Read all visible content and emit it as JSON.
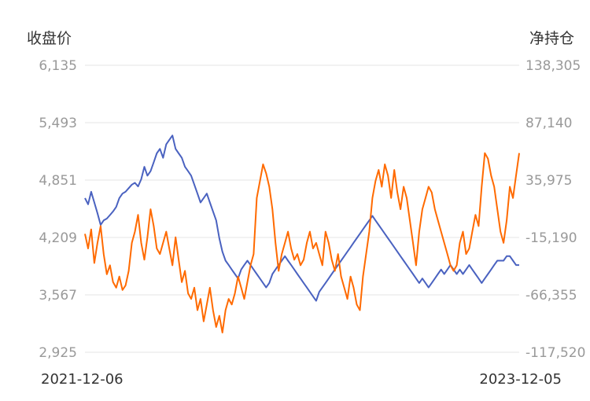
{
  "chart_data": {
    "type": "line",
    "left_axis": {
      "label": "收盘价",
      "ticks": [
        "6,135",
        "5,493",
        "4,851",
        "4,209",
        "3,567",
        "2,925"
      ],
      "ylim": [
        2925,
        6135
      ]
    },
    "right_axis": {
      "label": "净持仓",
      "ticks": [
        "138,305",
        "87,140",
        "35,975",
        "-15,190",
        "-66,355",
        "-117,520"
      ],
      "ylim": [
        -117520,
        138305
      ]
    },
    "x_labels": {
      "start": "2021-12-06",
      "end": "2023-12-05"
    },
    "grid": true,
    "colors": {
      "price": "#4a62c0",
      "position": "#ff6a00",
      "grid": "#e6e6e6"
    },
    "series": [
      {
        "axis": "left",
        "values": [
          4650,
          4580,
          4720,
          4600,
          4480,
          4350,
          4400,
          4420,
          4460,
          4500,
          4550,
          4650,
          4700,
          4720,
          4760,
          4800,
          4820,
          4780,
          4860,
          5000,
          4900,
          4950,
          5050,
          5150,
          5200,
          5100,
          5250,
          5300,
          5350,
          5200,
          5150,
          5100,
          5000,
          4950,
          4900,
          4800,
          4700,
          4600,
          4650,
          4700,
          4600,
          4500,
          4400,
          4200,
          4050,
          3950,
          3900,
          3850,
          3800,
          3750,
          3850,
          3900,
          3950,
          3900,
          3850,
          3800,
          3750,
          3700,
          3650,
          3700,
          3800,
          3850,
          3900,
          3950,
          4000,
          3950,
          3900,
          3850,
          3800,
          3750,
          3700,
          3650,
          3600,
          3550,
          3500,
          3600,
          3650,
          3700,
          3750,
          3800,
          3850,
          3900,
          3950,
          4000,
          4050,
          4100,
          4150,
          4200,
          4250,
          4300,
          4350,
          4400,
          4450,
          4400,
          4350,
          4300,
          4250,
          4200,
          4150,
          4100,
          4050,
          4000,
          3950,
          3900,
          3850,
          3800,
          3750,
          3700,
          3750,
          3700,
          3650,
          3700,
          3750,
          3800,
          3850,
          3800,
          3850,
          3900,
          3850,
          3800,
          3850,
          3800,
          3850,
          3900,
          3850,
          3800,
          3750,
          3700,
          3750,
          3800,
          3850,
          3900,
          3950,
          3950,
          3950,
          4000,
          4000,
          3950,
          3900,
          3900
        ],
        "note_range": "left"
      },
      {
        "axis": "right",
        "values": [
          -12000,
          -25000,
          -8000,
          -38000,
          -20000,
          -5000,
          -30000,
          -48000,
          -40000,
          -55000,
          -60000,
          -50000,
          -62000,
          -58000,
          -45000,
          -20000,
          -10000,
          5000,
          -20000,
          -35000,
          -15000,
          10000,
          -5000,
          -25000,
          -30000,
          -20000,
          -10000,
          -25000,
          -40000,
          -15000,
          -35000,
          -55000,
          -45000,
          -65000,
          -70000,
          -60000,
          -80000,
          -70000,
          -90000,
          -75000,
          -60000,
          -80000,
          -95000,
          -85000,
          -100000,
          -80000,
          -70000,
          -75000,
          -65000,
          -50000,
          -60000,
          -70000,
          -55000,
          -40000,
          -30000,
          20000,
          35000,
          50000,
          42000,
          30000,
          10000,
          -20000,
          -45000,
          -30000,
          -20000,
          -10000,
          -25000,
          -35000,
          -30000,
          -40000,
          -35000,
          -20000,
          -10000,
          -25000,
          -20000,
          -30000,
          -40000,
          -10000,
          -20000,
          -35000,
          -45000,
          -30000,
          -50000,
          -60000,
          -70000,
          -50000,
          -60000,
          -75000,
          -80000,
          -50000,
          -30000,
          -10000,
          20000,
          35000,
          45000,
          30000,
          50000,
          40000,
          20000,
          45000,
          25000,
          10000,
          30000,
          20000,
          0,
          -20000,
          -40000,
          -10000,
          10000,
          20000,
          30000,
          25000,
          10000,
          0,
          -10000,
          -20000,
          -30000,
          -40000,
          -45000,
          -40000,
          -20000,
          -10000,
          -30000,
          -25000,
          -10000,
          5000,
          -5000,
          30000,
          60000,
          55000,
          40000,
          30000,
          10000,
          -10000,
          -20000,
          0,
          30000,
          20000,
          40000,
          60000
        ],
        "note_range": "right"
      }
    ]
  }
}
